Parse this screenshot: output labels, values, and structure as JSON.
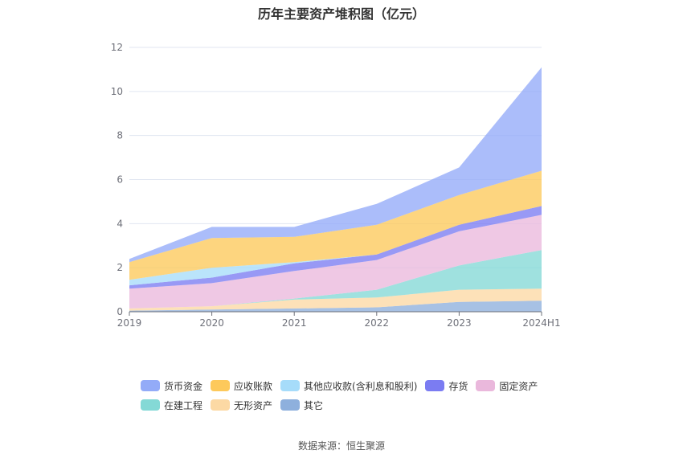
{
  "chart_data": {
    "type": "area",
    "stacked": true,
    "title": "历年主要资产堆积图（亿元）",
    "categories": [
      "2019",
      "2020",
      "2021",
      "2022",
      "2023",
      "2024H1"
    ],
    "y_ticks": [
      "0",
      "2",
      "4",
      "6",
      "8",
      "10",
      "12"
    ],
    "ylim": [
      0,
      12
    ],
    "grid": true,
    "legend_position": "bottom",
    "series": [
      {
        "name": "其它",
        "color": "#8eb0dd",
        "values": [
          0.05,
          0.1,
          0.15,
          0.2,
          0.45,
          0.5
        ]
      },
      {
        "name": "无形资产",
        "color": "#fcd9a4",
        "values": [
          0.1,
          0.15,
          0.4,
          0.45,
          0.55,
          0.55
        ]
      },
      {
        "name": "在建工程",
        "color": "#84d9d6",
        "values": [
          0.0,
          0.0,
          0.05,
          0.35,
          1.1,
          1.75
        ]
      },
      {
        "name": "固定资产",
        "color": "#eab8dc",
        "values": [
          0.9,
          1.05,
          1.25,
          1.35,
          1.55,
          1.6
        ]
      },
      {
        "name": "存货",
        "color": "#7b7cf2",
        "values": [
          0.15,
          0.25,
          0.35,
          0.25,
          0.3,
          0.4
        ]
      },
      {
        "name": "其他应收款(含利息和股利)",
        "color": "#a6dcfa",
        "values": [
          0.25,
          0.45,
          0.05,
          0.0,
          0.0,
          0.0
        ]
      },
      {
        "name": "应收账款",
        "color": "#fdc95b",
        "values": [
          0.8,
          1.35,
          1.15,
          1.35,
          1.35,
          1.6
        ]
      },
      {
        "name": "货币资金",
        "color": "#93abf8",
        "values": [
          0.15,
          0.5,
          0.45,
          0.95,
          1.25,
          4.7
        ]
      }
    ],
    "legend_order": [
      "货币资金",
      "应收账款",
      "其他应收款(含利息和股利)",
      "存货",
      "固定资产",
      "在建工程",
      "无形资产",
      "其它"
    ]
  },
  "source_text": "数据来源：恒生聚源"
}
